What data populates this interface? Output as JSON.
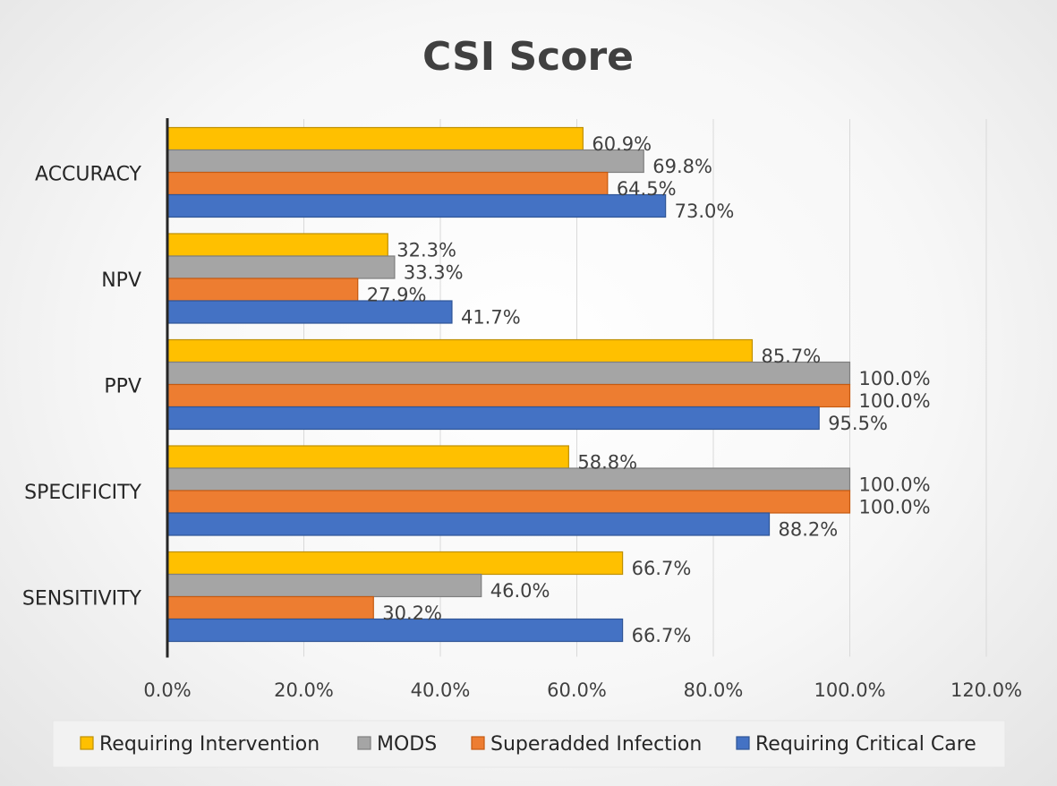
{
  "chart_data": {
    "type": "bar",
    "orientation": "horizontal",
    "title": "CSI Score",
    "xlabel": "",
    "ylabel": "",
    "xlim": [
      0,
      120
    ],
    "tick_values": [
      0,
      20,
      40,
      60,
      80,
      100,
      120
    ],
    "tick_labels": [
      "0.0%",
      "20.0%",
      "40.0%",
      "60.0%",
      "80.0%",
      "100.0%",
      "120.0%"
    ],
    "categories": [
      "ACCURACY",
      "NPV",
      "PPV",
      "SPECIFICITY",
      "SENSITIVITY"
    ],
    "series": [
      {
        "name": "Requiring Intervention",
        "color": "#FFC000",
        "stroke": "#BF9000",
        "values": [
          60.9,
          32.3,
          85.7,
          58.8,
          66.7
        ],
        "labels": [
          "60.9%",
          "32.3%",
          "85.7%",
          "58.8%",
          "66.7%"
        ]
      },
      {
        "name": "MODS",
        "color": "#A5A5A5",
        "stroke": "#7F7F7F",
        "values": [
          69.8,
          33.3,
          100.0,
          100.0,
          46.0
        ],
        "labels": [
          "69.8%",
          "33.3%",
          "100.0%",
          "100.0%",
          "46.0%"
        ]
      },
      {
        "name": "Superadded Infection",
        "color": "#ED7D31",
        "stroke": "#C55A11",
        "values": [
          64.5,
          27.9,
          100.0,
          100.0,
          30.2
        ],
        "labels": [
          "64.5%",
          "27.9%",
          "100.0%",
          "100.0%",
          "30.2%"
        ]
      },
      {
        "name": "Requiring Critical Care",
        "color": "#4472C4",
        "stroke": "#2F5597",
        "values": [
          73.0,
          41.7,
          95.5,
          88.2,
          66.7
        ],
        "labels": [
          "73.0%",
          "41.7%",
          "95.5%",
          "88.2%",
          "66.7%"
        ]
      }
    ],
    "grid": true,
    "legend_position": "bottom"
  }
}
